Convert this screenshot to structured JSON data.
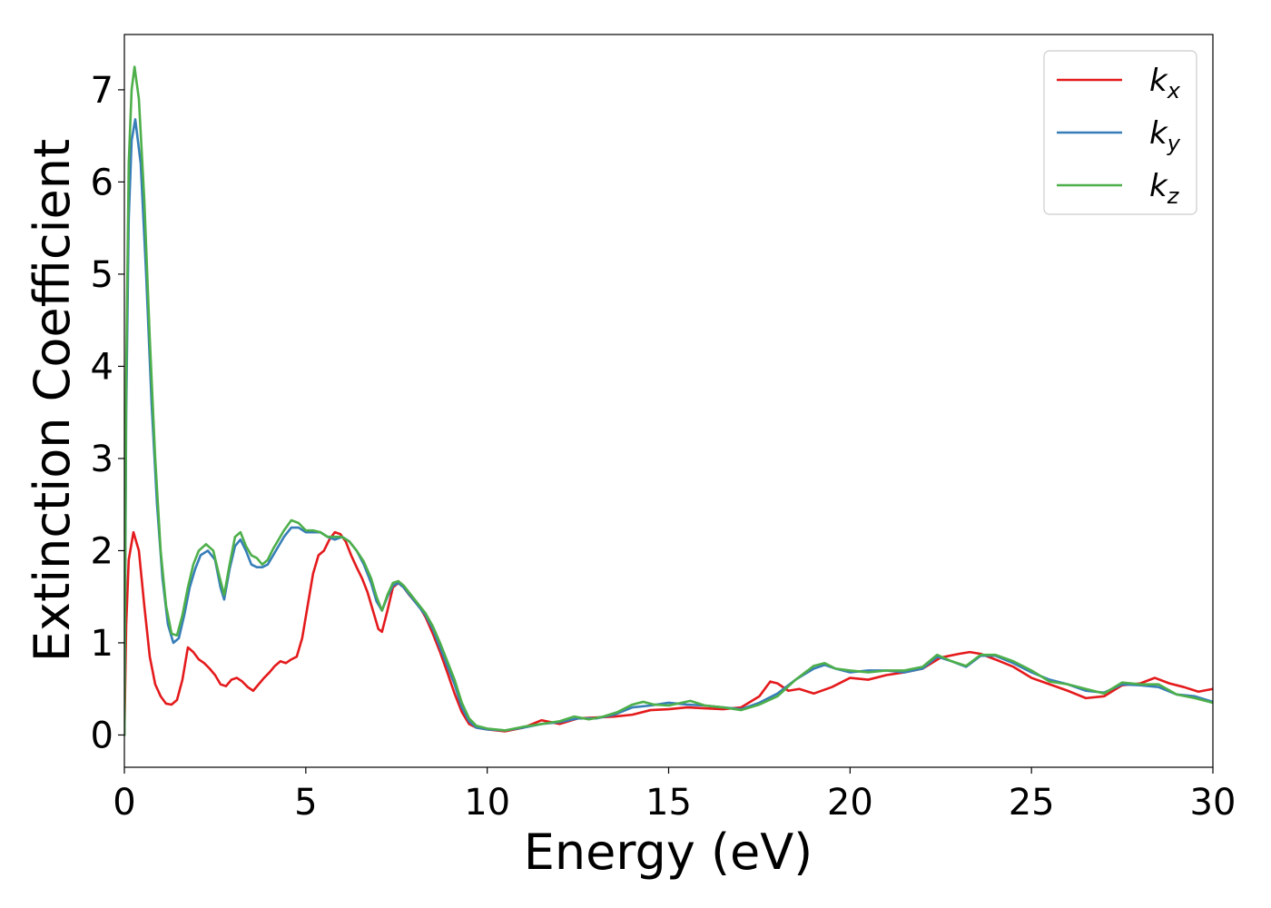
{
  "chart_data": {
    "type": "line",
    "title": "",
    "xlabel": "Energy (eV)",
    "ylabel": "Extinction Coefficient",
    "xlim": [
      0,
      30
    ],
    "ylim": [
      -0.35,
      7.6
    ],
    "xticks": [
      0,
      5,
      10,
      15,
      20,
      25,
      30
    ],
    "yticks": [
      0,
      1,
      2,
      3,
      4,
      5,
      6,
      7
    ],
    "grid": false,
    "legend_position": "top-right",
    "series": [
      {
        "name": "k",
        "subscript": "x",
        "color": "#e41a1c",
        "points": [
          [
            0,
            0
          ],
          [
            0.05,
            1.2
          ],
          [
            0.12,
            1.9
          ],
          [
            0.25,
            2.2
          ],
          [
            0.4,
            2.0
          ],
          [
            0.55,
            1.4
          ],
          [
            0.7,
            0.85
          ],
          [
            0.85,
            0.55
          ],
          [
            1.0,
            0.42
          ],
          [
            1.15,
            0.34
          ],
          [
            1.3,
            0.33
          ],
          [
            1.45,
            0.38
          ],
          [
            1.6,
            0.6
          ],
          [
            1.75,
            0.95
          ],
          [
            1.9,
            0.9
          ],
          [
            2.05,
            0.82
          ],
          [
            2.2,
            0.78
          ],
          [
            2.35,
            0.72
          ],
          [
            2.5,
            0.65
          ],
          [
            2.65,
            0.55
          ],
          [
            2.8,
            0.53
          ],
          [
            2.95,
            0.6
          ],
          [
            3.1,
            0.62
          ],
          [
            3.25,
            0.58
          ],
          [
            3.4,
            0.52
          ],
          [
            3.55,
            0.48
          ],
          [
            3.7,
            0.55
          ],
          [
            3.85,
            0.62
          ],
          [
            4.0,
            0.68
          ],
          [
            4.15,
            0.75
          ],
          [
            4.3,
            0.8
          ],
          [
            4.45,
            0.78
          ],
          [
            4.6,
            0.82
          ],
          [
            4.75,
            0.85
          ],
          [
            4.9,
            1.05
          ],
          [
            5.05,
            1.4
          ],
          [
            5.2,
            1.75
          ],
          [
            5.35,
            1.95
          ],
          [
            5.5,
            2.0
          ],
          [
            5.65,
            2.12
          ],
          [
            5.8,
            2.2
          ],
          [
            5.95,
            2.18
          ],
          [
            6.1,
            2.1
          ],
          [
            6.25,
            1.95
          ],
          [
            6.4,
            1.82
          ],
          [
            6.55,
            1.7
          ],
          [
            6.7,
            1.55
          ],
          [
            6.85,
            1.35
          ],
          [
            7.0,
            1.15
          ],
          [
            7.1,
            1.12
          ],
          [
            7.25,
            1.35
          ],
          [
            7.4,
            1.6
          ],
          [
            7.55,
            1.65
          ],
          [
            7.7,
            1.6
          ],
          [
            7.85,
            1.52
          ],
          [
            8.0,
            1.45
          ],
          [
            8.15,
            1.38
          ],
          [
            8.3,
            1.28
          ],
          [
            8.5,
            1.1
          ],
          [
            8.7,
            0.9
          ],
          [
            8.9,
            0.68
          ],
          [
            9.1,
            0.45
          ],
          [
            9.3,
            0.25
          ],
          [
            9.5,
            0.12
          ],
          [
            9.7,
            0.08
          ],
          [
            10.0,
            0.06
          ],
          [
            10.5,
            0.04
          ],
          [
            11.0,
            0.08
          ],
          [
            11.5,
            0.16
          ],
          [
            12.0,
            0.12
          ],
          [
            12.5,
            0.18
          ],
          [
            13.0,
            0.19
          ],
          [
            13.5,
            0.2
          ],
          [
            14.0,
            0.22
          ],
          [
            14.5,
            0.27
          ],
          [
            15.0,
            0.28
          ],
          [
            15.5,
            0.3
          ],
          [
            16.0,
            0.29
          ],
          [
            16.5,
            0.28
          ],
          [
            17.0,
            0.3
          ],
          [
            17.5,
            0.42
          ],
          [
            17.8,
            0.58
          ],
          [
            18.0,
            0.56
          ],
          [
            18.3,
            0.48
          ],
          [
            18.6,
            0.5
          ],
          [
            19.0,
            0.45
          ],
          [
            19.5,
            0.52
          ],
          [
            20.0,
            0.62
          ],
          [
            20.5,
            0.6
          ],
          [
            21.0,
            0.65
          ],
          [
            21.5,
            0.68
          ],
          [
            22.0,
            0.72
          ],
          [
            22.5,
            0.84
          ],
          [
            23.0,
            0.88
          ],
          [
            23.3,
            0.9
          ],
          [
            23.6,
            0.88
          ],
          [
            24.0,
            0.82
          ],
          [
            24.5,
            0.74
          ],
          [
            25.0,
            0.62
          ],
          [
            25.5,
            0.55
          ],
          [
            26.0,
            0.48
          ],
          [
            26.5,
            0.4
          ],
          [
            27.0,
            0.42
          ],
          [
            27.5,
            0.54
          ],
          [
            28.0,
            0.56
          ],
          [
            28.4,
            0.62
          ],
          [
            28.8,
            0.56
          ],
          [
            29.2,
            0.52
          ],
          [
            29.6,
            0.47
          ],
          [
            30.0,
            0.5
          ]
        ]
      },
      {
        "name": "k",
        "subscript": "y",
        "color": "#377eb8",
        "points": [
          [
            0,
            0
          ],
          [
            0.05,
            3.5
          ],
          [
            0.12,
            5.6
          ],
          [
            0.2,
            6.45
          ],
          [
            0.3,
            6.68
          ],
          [
            0.45,
            6.2
          ],
          [
            0.6,
            5.0
          ],
          [
            0.75,
            3.6
          ],
          [
            0.9,
            2.5
          ],
          [
            1.05,
            1.7
          ],
          [
            1.2,
            1.2
          ],
          [
            1.35,
            1.0
          ],
          [
            1.5,
            1.05
          ],
          [
            1.65,
            1.3
          ],
          [
            1.8,
            1.6
          ],
          [
            1.95,
            1.8
          ],
          [
            2.1,
            1.95
          ],
          [
            2.3,
            2.0
          ],
          [
            2.5,
            1.9
          ],
          [
            2.65,
            1.6
          ],
          [
            2.75,
            1.47
          ],
          [
            2.9,
            1.8
          ],
          [
            3.05,
            2.05
          ],
          [
            3.2,
            2.12
          ],
          [
            3.35,
            2.0
          ],
          [
            3.5,
            1.85
          ],
          [
            3.65,
            1.82
          ],
          [
            3.8,
            1.82
          ],
          [
            3.95,
            1.85
          ],
          [
            4.1,
            1.95
          ],
          [
            4.25,
            2.05
          ],
          [
            4.4,
            2.15
          ],
          [
            4.6,
            2.25
          ],
          [
            4.8,
            2.25
          ],
          [
            5.0,
            2.2
          ],
          [
            5.2,
            2.2
          ],
          [
            5.4,
            2.2
          ],
          [
            5.6,
            2.15
          ],
          [
            5.8,
            2.12
          ],
          [
            6.0,
            2.15
          ],
          [
            6.2,
            2.1
          ],
          [
            6.4,
            2.0
          ],
          [
            6.6,
            1.85
          ],
          [
            6.8,
            1.65
          ],
          [
            6.95,
            1.45
          ],
          [
            7.1,
            1.35
          ],
          [
            7.25,
            1.5
          ],
          [
            7.4,
            1.62
          ],
          [
            7.55,
            1.65
          ],
          [
            7.7,
            1.6
          ],
          [
            7.9,
            1.5
          ],
          [
            8.1,
            1.4
          ],
          [
            8.3,
            1.3
          ],
          [
            8.5,
            1.15
          ],
          [
            8.7,
            0.95
          ],
          [
            8.9,
            0.75
          ],
          [
            9.1,
            0.55
          ],
          [
            9.3,
            0.3
          ],
          [
            9.5,
            0.15
          ],
          [
            9.7,
            0.08
          ],
          [
            10.0,
            0.06
          ],
          [
            10.5,
            0.05
          ],
          [
            11.0,
            0.08
          ],
          [
            11.5,
            0.12
          ],
          [
            12.0,
            0.14
          ],
          [
            12.5,
            0.18
          ],
          [
            13.0,
            0.18
          ],
          [
            13.5,
            0.22
          ],
          [
            14.0,
            0.3
          ],
          [
            14.5,
            0.32
          ],
          [
            15.0,
            0.35
          ],
          [
            15.5,
            0.33
          ],
          [
            16.0,
            0.32
          ],
          [
            16.5,
            0.3
          ],
          [
            17.0,
            0.28
          ],
          [
            17.5,
            0.35
          ],
          [
            18.0,
            0.45
          ],
          [
            18.5,
            0.6
          ],
          [
            19.0,
            0.72
          ],
          [
            19.3,
            0.76
          ],
          [
            19.6,
            0.72
          ],
          [
            20.0,
            0.68
          ],
          [
            20.5,
            0.7
          ],
          [
            21.0,
            0.7
          ],
          [
            21.5,
            0.68
          ],
          [
            22.0,
            0.72
          ],
          [
            22.4,
            0.85
          ],
          [
            22.8,
            0.8
          ],
          [
            23.2,
            0.74
          ],
          [
            23.6,
            0.86
          ],
          [
            24.0,
            0.86
          ],
          [
            24.5,
            0.78
          ],
          [
            25.0,
            0.68
          ],
          [
            25.5,
            0.6
          ],
          [
            26.0,
            0.55
          ],
          [
            26.5,
            0.48
          ],
          [
            27.0,
            0.46
          ],
          [
            27.5,
            0.55
          ],
          [
            28.0,
            0.54
          ],
          [
            28.5,
            0.52
          ],
          [
            29.0,
            0.44
          ],
          [
            29.5,
            0.42
          ],
          [
            30.0,
            0.36
          ]
        ]
      },
      {
        "name": "k",
        "subscript": "z",
        "color": "#4daf4a",
        "points": [
          [
            0,
            0
          ],
          [
            0.05,
            3.9
          ],
          [
            0.12,
            6.2
          ],
          [
            0.2,
            7.0
          ],
          [
            0.28,
            7.25
          ],
          [
            0.4,
            6.9
          ],
          [
            0.55,
            5.8
          ],
          [
            0.7,
            4.3
          ],
          [
            0.85,
            3.0
          ],
          [
            1.0,
            2.0
          ],
          [
            1.15,
            1.4
          ],
          [
            1.3,
            1.1
          ],
          [
            1.45,
            1.08
          ],
          [
            1.6,
            1.3
          ],
          [
            1.75,
            1.6
          ],
          [
            1.9,
            1.85
          ],
          [
            2.05,
            2.0
          ],
          [
            2.25,
            2.07
          ],
          [
            2.45,
            2.0
          ],
          [
            2.6,
            1.75
          ],
          [
            2.75,
            1.52
          ],
          [
            2.9,
            1.85
          ],
          [
            3.05,
            2.15
          ],
          [
            3.2,
            2.2
          ],
          [
            3.35,
            2.05
          ],
          [
            3.5,
            1.95
          ],
          [
            3.65,
            1.92
          ],
          [
            3.8,
            1.85
          ],
          [
            3.95,
            1.9
          ],
          [
            4.1,
            2.02
          ],
          [
            4.25,
            2.12
          ],
          [
            4.4,
            2.22
          ],
          [
            4.6,
            2.33
          ],
          [
            4.8,
            2.3
          ],
          [
            5.0,
            2.22
          ],
          [
            5.2,
            2.22
          ],
          [
            5.4,
            2.2
          ],
          [
            5.6,
            2.15
          ],
          [
            5.8,
            2.15
          ],
          [
            6.0,
            2.15
          ],
          [
            6.2,
            2.1
          ],
          [
            6.4,
            2.0
          ],
          [
            6.6,
            1.88
          ],
          [
            6.8,
            1.7
          ],
          [
            6.95,
            1.5
          ],
          [
            7.1,
            1.35
          ],
          [
            7.25,
            1.52
          ],
          [
            7.4,
            1.65
          ],
          [
            7.55,
            1.67
          ],
          [
            7.7,
            1.62
          ],
          [
            7.9,
            1.52
          ],
          [
            8.1,
            1.42
          ],
          [
            8.3,
            1.32
          ],
          [
            8.5,
            1.18
          ],
          [
            8.7,
            1.0
          ],
          [
            8.9,
            0.8
          ],
          [
            9.1,
            0.6
          ],
          [
            9.3,
            0.35
          ],
          [
            9.5,
            0.18
          ],
          [
            9.7,
            0.1
          ],
          [
            10.0,
            0.07
          ],
          [
            10.5,
            0.05
          ],
          [
            11.0,
            0.09
          ],
          [
            11.5,
            0.12
          ],
          [
            12.0,
            0.15
          ],
          [
            12.4,
            0.2
          ],
          [
            12.8,
            0.17
          ],
          [
            13.2,
            0.2
          ],
          [
            13.6,
            0.25
          ],
          [
            14.0,
            0.33
          ],
          [
            14.3,
            0.36
          ],
          [
            14.6,
            0.33
          ],
          [
            15.0,
            0.32
          ],
          [
            15.6,
            0.37
          ],
          [
            16.0,
            0.32
          ],
          [
            16.5,
            0.3
          ],
          [
            17.0,
            0.27
          ],
          [
            17.5,
            0.33
          ],
          [
            18.0,
            0.42
          ],
          [
            18.5,
            0.6
          ],
          [
            19.0,
            0.75
          ],
          [
            19.3,
            0.78
          ],
          [
            19.6,
            0.72
          ],
          [
            20.0,
            0.7
          ],
          [
            20.5,
            0.68
          ],
          [
            21.0,
            0.7
          ],
          [
            21.5,
            0.7
          ],
          [
            22.0,
            0.74
          ],
          [
            22.4,
            0.87
          ],
          [
            22.8,
            0.8
          ],
          [
            23.2,
            0.75
          ],
          [
            23.6,
            0.87
          ],
          [
            24.0,
            0.87
          ],
          [
            24.5,
            0.8
          ],
          [
            25.0,
            0.7
          ],
          [
            25.5,
            0.58
          ],
          [
            26.0,
            0.55
          ],
          [
            26.5,
            0.5
          ],
          [
            27.0,
            0.45
          ],
          [
            27.5,
            0.57
          ],
          [
            28.0,
            0.55
          ],
          [
            28.5,
            0.55
          ],
          [
            29.0,
            0.44
          ],
          [
            29.5,
            0.4
          ],
          [
            30.0,
            0.35
          ]
        ]
      }
    ]
  }
}
